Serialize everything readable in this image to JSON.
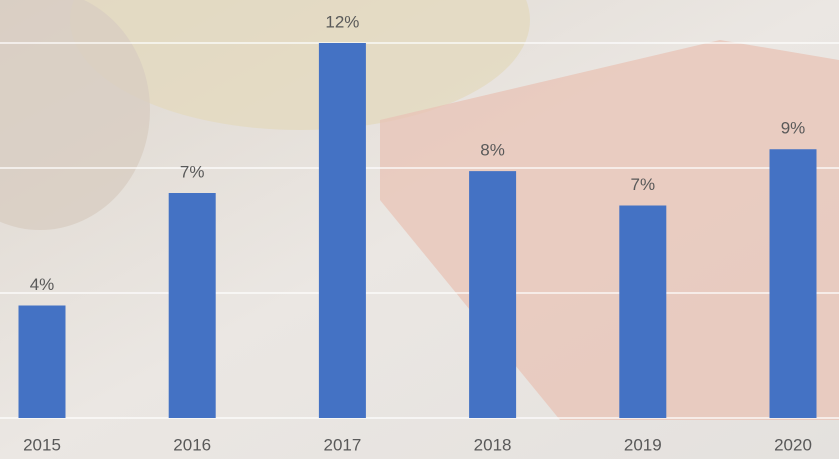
{
  "chart_data": {
    "type": "bar",
    "categories": [
      "2015",
      "2016",
      "2017",
      "2018",
      "2019",
      "2020"
    ],
    "values": [
      3.6,
      7.2,
      12,
      7.9,
      6.8,
      8.6
    ],
    "value_labels": [
      "4%",
      "7%",
      "12%",
      "8%",
      "7%",
      "9%"
    ],
    "color": "#4472c4",
    "ylim": [
      0,
      12
    ],
    "yticks": [
      0,
      4,
      8,
      12
    ],
    "grid": true
  }
}
